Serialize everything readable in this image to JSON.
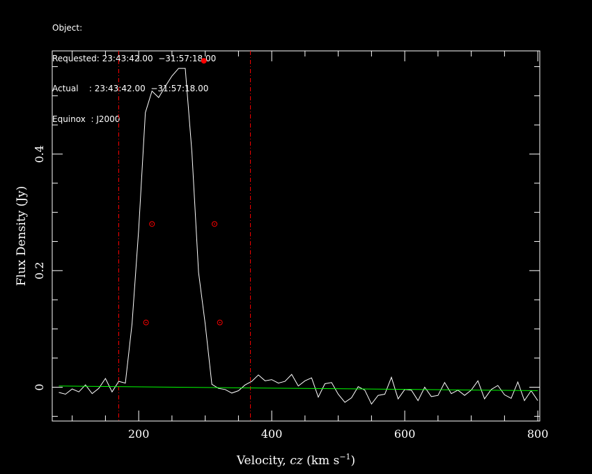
{
  "header": {
    "object_label": "Object:",
    "requested_label": "Requested:",
    "requested_value": "23:43:42.00  −31:57:18.00",
    "actual_label": "Actual    :",
    "actual_value": "23:43:42.00  −31:57:18.00",
    "equinox_label": "Equinox  :",
    "equinox_value": "J2000"
  },
  "chart_data": {
    "type": "line",
    "xlabel_text": "Velocity, ",
    "xlabel_var": "cz",
    "xlabel_unit_open": " (km s",
    "xlabel_sup": "−1",
    "xlabel_unit_close": ")",
    "ylabel": "Flux Density (Jy)",
    "xlim": [
      70,
      803
    ],
    "ylim": [
      -0.058,
      0.577
    ],
    "x_ticks": [
      200,
      400,
      600,
      800
    ],
    "x_tick_labels": [
      "200",
      "400",
      "600",
      "800"
    ],
    "y_ticks": [
      0,
      0.2,
      0.4
    ],
    "y_tick_labels": [
      "0",
      "0.2",
      "0.4"
    ],
    "grid": false,
    "colors": {
      "spectrum": "#ffffff",
      "baseline": "#00ff00",
      "markers": "#ff0000",
      "window_lines": "#ff0000"
    },
    "series": [
      {
        "role": "spectrum",
        "x": [
          80,
          90,
          100,
          110,
          120,
          130,
          140,
          150,
          160,
          170,
          180,
          190,
          200,
          210,
          220,
          230,
          240,
          250,
          260,
          270,
          280,
          290,
          300,
          310,
          320,
          330,
          340,
          350,
          360,
          370,
          380,
          390,
          400,
          410,
          420,
          430,
          440,
          450,
          460,
          470,
          480,
          490,
          500,
          510,
          520,
          530,
          540,
          550,
          560,
          570,
          580,
          590,
          600,
          610,
          620,
          630,
          640,
          650,
          660,
          670,
          680,
          690,
          700,
          710,
          720,
          730,
          740,
          750,
          760,
          770,
          780,
          790,
          800
        ],
        "y": [
          -0.009,
          -0.012,
          -0.003,
          -0.008,
          0.004,
          -0.011,
          -0.002,
          0.015,
          -0.008,
          0.01,
          0.007,
          0.109,
          0.27,
          0.471,
          0.508,
          0.497,
          0.516,
          0.534,
          0.547,
          0.547,
          0.404,
          0.197,
          0.109,
          0.005,
          -0.002,
          -0.004,
          -0.01,
          -0.006,
          0.004,
          0.01,
          0.021,
          0.011,
          0.013,
          0.007,
          0.01,
          0.022,
          0.002,
          0.011,
          0.016,
          -0.017,
          0.006,
          0.008,
          -0.012,
          -0.026,
          -0.018,
          0.001,
          -0.005,
          -0.029,
          -0.014,
          -0.012,
          0.017,
          -0.02,
          -0.004,
          -0.005,
          -0.023,
          0.0,
          -0.016,
          -0.014,
          0.008,
          -0.011,
          -0.005,
          -0.014,
          -0.005,
          0.011,
          -0.02,
          -0.004,
          0.003,
          -0.013,
          -0.019,
          0.009,
          -0.023,
          -0.006,
          -0.023
        ]
      },
      {
        "role": "baseline",
        "x": [
          80,
          800
        ],
        "y": [
          0.002,
          -0.006
        ]
      }
    ],
    "peak_marker": {
      "x": 298,
      "y": 0.56
    },
    "edge_markers": [
      {
        "x": 211,
        "y": 0.111
      },
      {
        "x": 220,
        "y": 0.28
      },
      {
        "x": 314,
        "y": 0.28
      },
      {
        "x": 322,
        "y": 0.111
      }
    ],
    "window_lines_x": [
      170,
      368
    ]
  }
}
